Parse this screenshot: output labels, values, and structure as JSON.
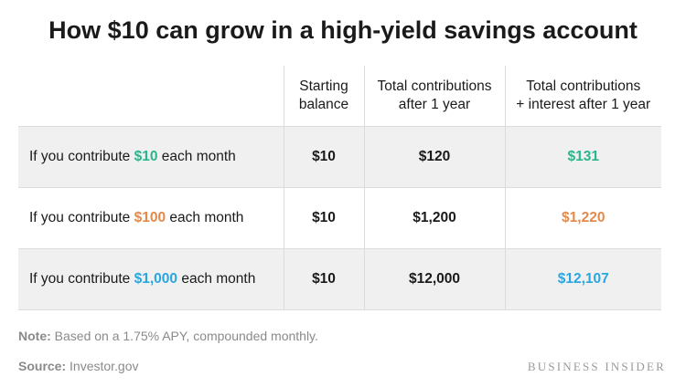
{
  "chart_data": {
    "type": "table",
    "title": "How $10 can grow in a high-yield savings account",
    "columns": [
      "",
      "Starting balance",
      "Total contributions after 1 year",
      "Total contributions + interest after 1 year"
    ],
    "column_lines": [
      [],
      [
        "Starting",
        "balance"
      ],
      [
        "Total contributions",
        "after 1 year"
      ],
      [
        "Total contributions",
        "+ interest after 1 year"
      ]
    ],
    "rows": [
      {
        "label_pre": "If you contribute",
        "amount": "$10",
        "label_post": "each month",
        "starting": "$10",
        "contrib": "$120",
        "with_interest": "$131",
        "color": "#2bb58c"
      },
      {
        "label_pre": "If you contribute",
        "amount": "$100",
        "label_post": "each month",
        "starting": "$10",
        "contrib": "$1,200",
        "with_interest": "$1,220",
        "color": "#e5894a"
      },
      {
        "label_pre": "If you contribute",
        "amount": "$1,000",
        "label_post": "each month",
        "starting": "$10",
        "contrib": "$12,000",
        "with_interest": "$12,107",
        "color": "#2aa6e0"
      }
    ]
  },
  "footer": {
    "note_label": "Note:",
    "note_text": " Based on a 1.75% APY, compounded monthly.",
    "source_label": "Source:",
    "source_text": " Investor.gov",
    "logo": "BUSINESS INSIDER"
  }
}
